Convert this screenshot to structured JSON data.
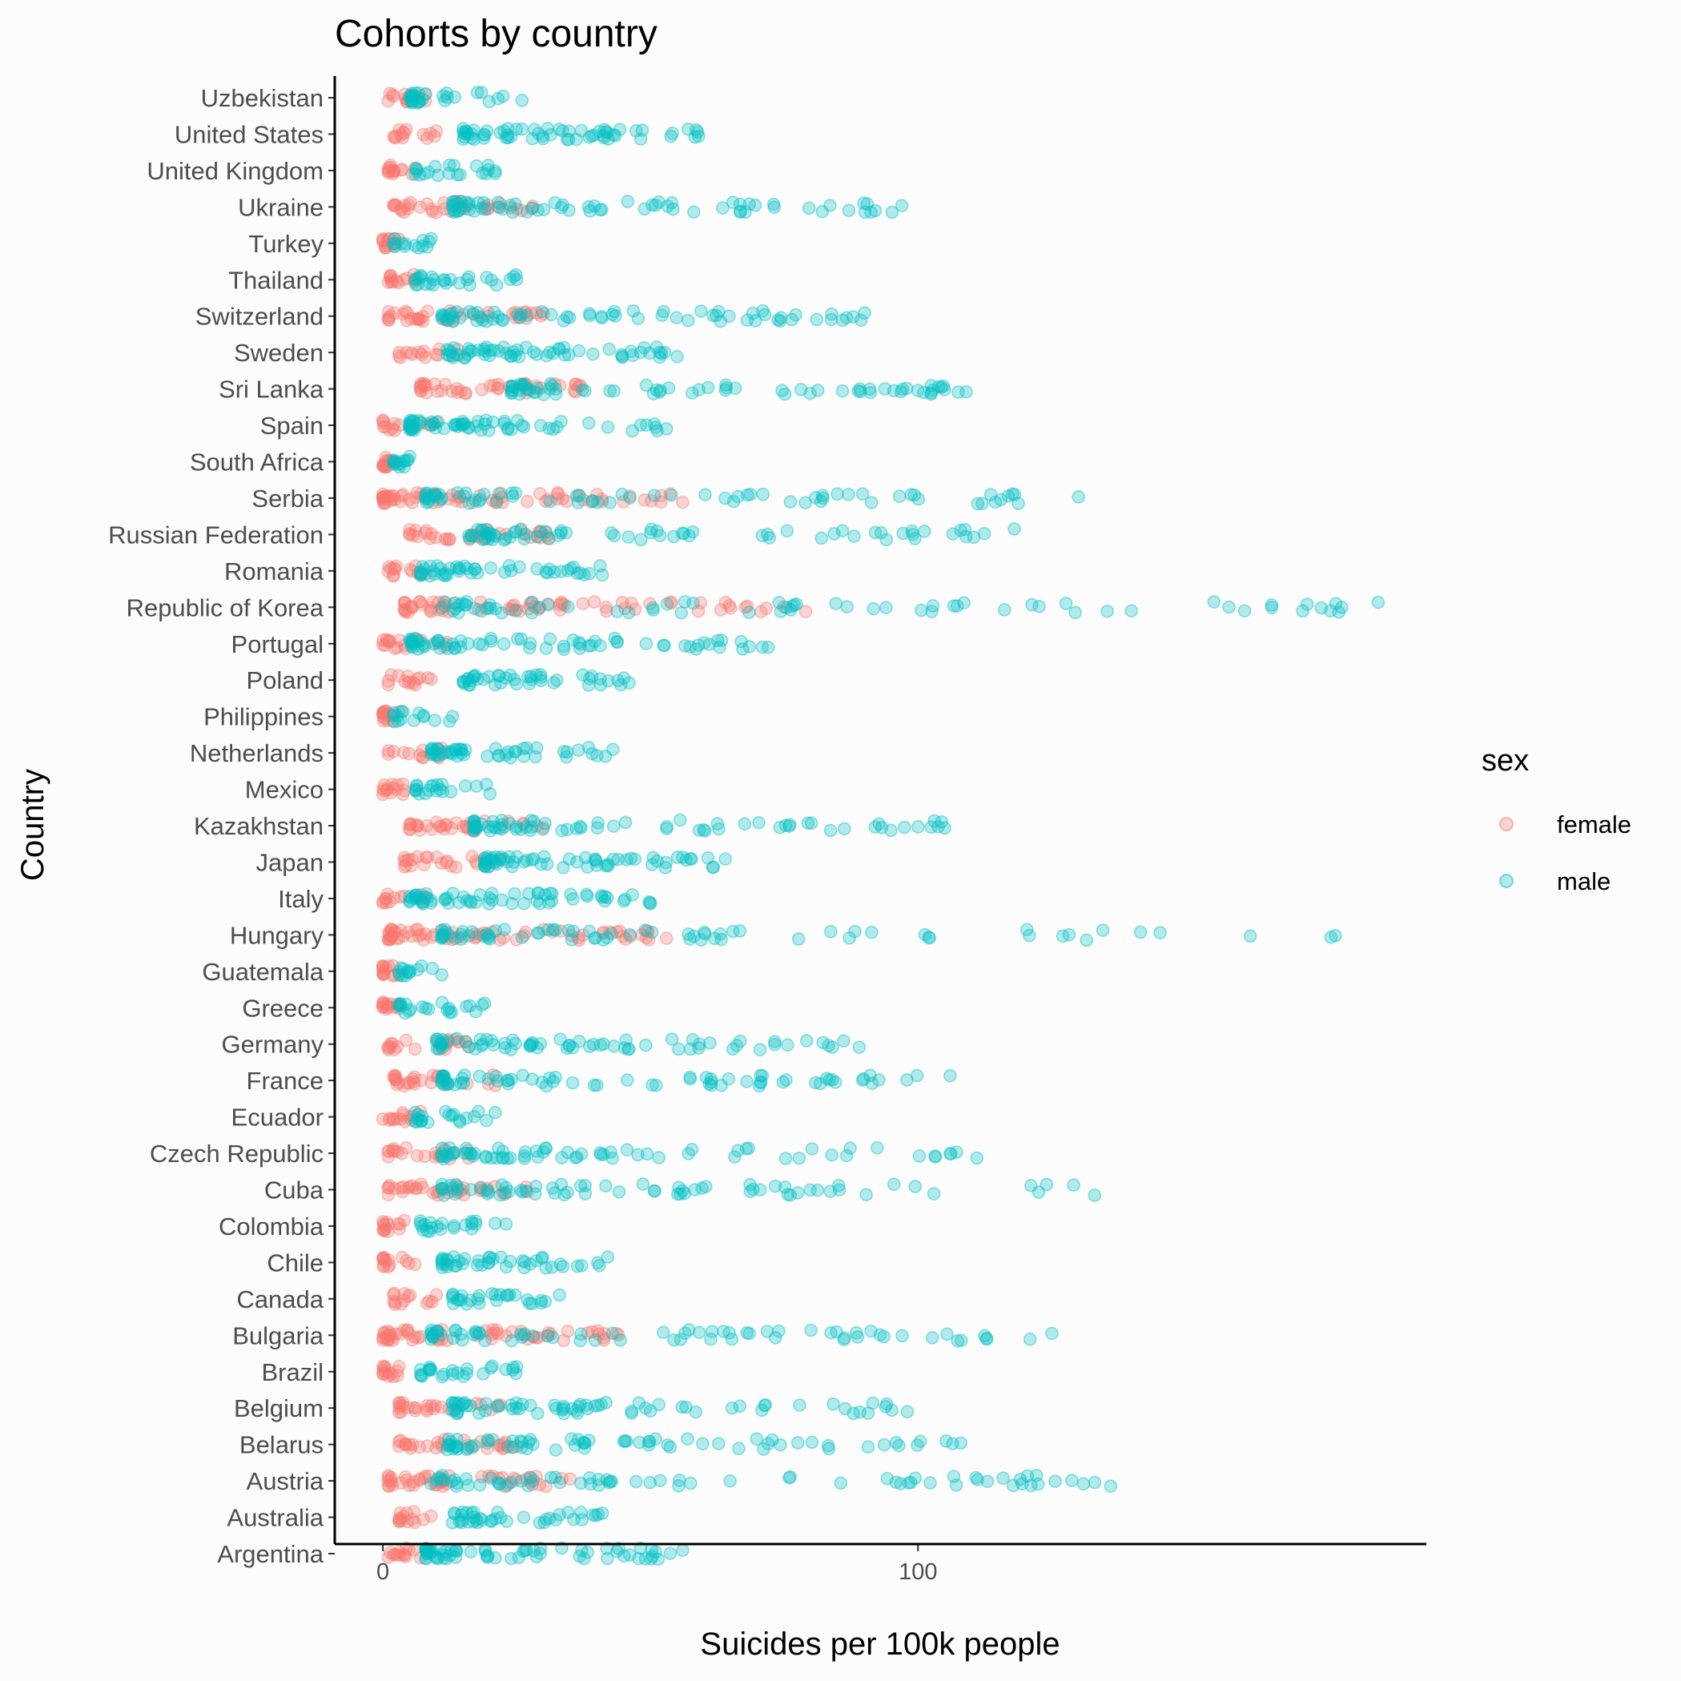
{
  "chart_data": {
    "type": "scatter",
    "title": "Cohorts by country",
    "xlabel": "Suicides per 100k people",
    "ylabel": "Country",
    "xlim": [
      -9,
      195
    ],
    "x_ticks": [
      0,
      100
    ],
    "x_tick_labels": [
      "0",
      "100"
    ],
    "grid": false,
    "legend": {
      "title": "sex",
      "placement": "right",
      "entries": [
        {
          "label": "female",
          "color": "#F8766D"
        },
        {
          "label": "male",
          "color": "#00BFC4"
        }
      ]
    },
    "countries": [
      "Uzbekistan",
      "United States",
      "United Kingdom",
      "Ukraine",
      "Turkey",
      "Thailand",
      "Switzerland",
      "Sweden",
      "Sri Lanka",
      "Spain",
      "South Africa",
      "Serbia",
      "Russian Federation",
      "Romania",
      "Republic of Korea",
      "Portugal",
      "Poland",
      "Philippines",
      "Netherlands",
      "Mexico",
      "Kazakhstan",
      "Japan",
      "Italy",
      "Hungary",
      "Guatemala",
      "Greece",
      "Germany",
      "France",
      "Ecuador",
      "Czech Republic",
      "Cuba",
      "Colombia",
      "Chile",
      "Canada",
      "Bulgaria",
      "Brazil",
      "Belgium",
      "Belarus",
      "Austria",
      "Australia",
      "Argentina"
    ],
    "series": [
      {
        "name": "female",
        "color": "#F8766D",
        "ranges_by_country": {
          "Uzbekistan": [
            1,
            8
          ],
          "United States": [
            2,
            10
          ],
          "United Kingdom": [
            1,
            6
          ],
          "Ukraine": [
            2,
            28
          ],
          "Turkey": [
            0,
            3
          ],
          "Thailand": [
            1,
            6
          ],
          "Switzerland": [
            1,
            30
          ],
          "Sweden": [
            3,
            14
          ],
          "Sri Lanka": [
            7,
            37
          ],
          "Spain": [
            0,
            10
          ],
          "South Africa": [
            0,
            2
          ],
          "Serbia": [
            0,
            56
          ],
          "Russian Federation": [
            5,
            31
          ],
          "Romania": [
            1,
            8
          ],
          "Republic of Korea": [
            4,
            79
          ],
          "Portugal": [
            0,
            12
          ],
          "Poland": [
            1,
            9
          ],
          "Philippines": [
            0,
            3
          ],
          "Netherlands": [
            1,
            11
          ],
          "Mexico": [
            0,
            4
          ],
          "Kazakhstan": [
            5,
            30
          ],
          "Japan": [
            4,
            22
          ],
          "Italy": [
            0,
            8
          ],
          "Hungary": [
            1,
            53
          ],
          "Guatemala": [
            0,
            3
          ],
          "Greece": [
            0,
            3
          ],
          "Germany": [
            1,
            16
          ],
          "France": [
            2,
            21
          ],
          "Ecuador": [
            0,
            7
          ],
          "Czech Republic": [
            1,
            16
          ],
          "Cuba": [
            1,
            27
          ],
          "Colombia": [
            0,
            4
          ],
          "Chile": [
            0,
            6
          ],
          "Canada": [
            2,
            10
          ],
          "Bulgaria": [
            0,
            44
          ],
          "Brazil": [
            0,
            3
          ],
          "Belgium": [
            3,
            22
          ],
          "Belarus": [
            3,
            25
          ],
          "Austria": [
            1,
            35
          ],
          "Australia": [
            3,
            9
          ],
          "Argentina": [
            1,
            7
          ]
        }
      },
      {
        "name": "male",
        "color": "#00BFC4",
        "ranges_by_country": {
          "Uzbekistan": [
            5,
            26
          ],
          "United States": [
            15,
            59
          ],
          "United Kingdom": [
            6,
            21
          ],
          "Ukraine": [
            13,
            97
          ],
          "Turkey": [
            2,
            9
          ],
          "Thailand": [
            6,
            25
          ],
          "Switzerland": [
            11,
            90
          ],
          "Sweden": [
            12,
            55
          ],
          "Sri Lanka": [
            24,
            109
          ],
          "Spain": [
            5,
            53
          ],
          "South Africa": [
            2,
            5
          ],
          "Serbia": [
            8,
            130
          ],
          "Russian Federation": [
            16,
            118
          ],
          "Romania": [
            7,
            41
          ],
          "Republic of Korea": [
            11,
            186
          ],
          "Portugal": [
            5,
            72
          ],
          "Poland": [
            15,
            46
          ],
          "Philippines": [
            2,
            13
          ],
          "Netherlands": [
            9,
            43
          ],
          "Mexico": [
            6,
            20
          ],
          "Kazakhstan": [
            17,
            105
          ],
          "Japan": [
            19,
            64
          ],
          "Italy": [
            5,
            50
          ],
          "Hungary": [
            11,
            178
          ],
          "Guatemala": [
            3,
            11
          ],
          "Greece": [
            3,
            19
          ],
          "Germany": [
            10,
            89
          ],
          "France": [
            11,
            106
          ],
          "Ecuador": [
            6,
            21
          ],
          "Czech Republic": [
            11,
            111
          ],
          "Cuba": [
            11,
            133
          ],
          "Colombia": [
            7,
            23
          ],
          "Chile": [
            11,
            42
          ],
          "Canada": [
            13,
            33
          ],
          "Bulgaria": [
            9,
            125
          ],
          "Brazil": [
            7,
            25
          ],
          "Belgium": [
            13,
            98
          ],
          "Belarus": [
            12,
            108
          ],
          "Austria": [
            9,
            136
          ],
          "Australia": [
            13,
            41
          ],
          "Argentina": [
            8,
            56
          ]
        }
      }
    ]
  }
}
